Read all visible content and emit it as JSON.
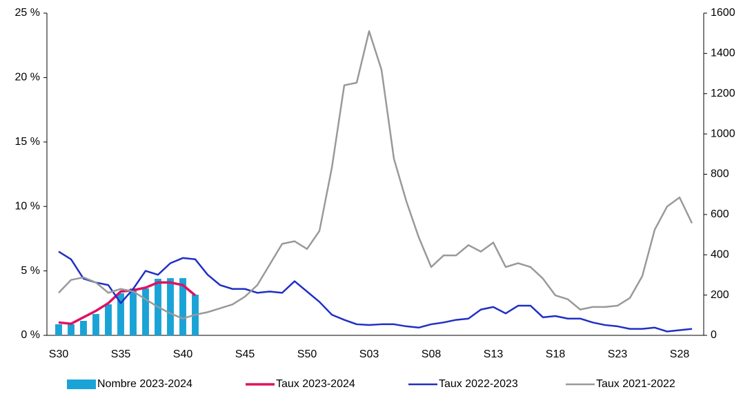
{
  "chart_data": {
    "type": "line",
    "categories": [
      "S30",
      null,
      null,
      null,
      null,
      "S35",
      null,
      null,
      null,
      null,
      "S40",
      null,
      null,
      null,
      null,
      "S45",
      null,
      null,
      null,
      null,
      "S50",
      null,
      null,
      null,
      null,
      "S03",
      null,
      null,
      null,
      null,
      "S08",
      null,
      null,
      null,
      null,
      "S13",
      null,
      null,
      null,
      null,
      "S18",
      null,
      null,
      null,
      null,
      "S23",
      null,
      null,
      null,
      null,
      "S28",
      null
    ],
    "ylim": [
      0,
      25
    ],
    "yticks": [
      {
        "value": 0,
        "label": "0 %"
      },
      {
        "value": 5,
        "label": "5 %"
      },
      {
        "value": 10,
        "label": "10 %"
      },
      {
        "value": 15,
        "label": "15 %"
      },
      {
        "value": 20,
        "label": "20 %"
      },
      {
        "value": 25,
        "label": "25 %"
      }
    ],
    "y2lim": [
      0,
      1600
    ],
    "y2ticks": [
      0,
      200,
      400,
      600,
      800,
      1000,
      1200,
      1400,
      1600
    ],
    "legend": "bottom",
    "series": [
      {
        "name": "Nombre 2023-2024",
        "type": "bar",
        "axis": "y2",
        "color": "#1aa3d6",
        "values": [
          55,
          55,
          72,
          106,
          154,
          209,
          233,
          233,
          281,
          284,
          284,
          202,
          null,
          null,
          null,
          null,
          null,
          null,
          null,
          null,
          null,
          null,
          null,
          null,
          null,
          null,
          null,
          null,
          null,
          null,
          null,
          null,
          null,
          null,
          null,
          null,
          null,
          null,
          null,
          null,
          null,
          null,
          null,
          null,
          null,
          null,
          null,
          null,
          null,
          null,
          null,
          null
        ]
      },
      {
        "name": "Taux 2023-2024",
        "type": "line",
        "color": "#e0115f",
        "width": 3.5,
        "values": [
          1.0,
          0.9,
          1.4,
          1.9,
          2.5,
          3.4,
          3.5,
          3.7,
          4.1,
          4.1,
          3.9,
          3.1,
          null,
          null,
          null,
          null,
          null,
          null,
          null,
          null,
          null,
          null,
          null,
          null,
          null,
          null,
          null,
          null,
          null,
          null,
          null,
          null,
          null,
          null,
          null,
          null,
          null,
          null,
          null,
          null,
          null,
          null,
          null,
          null,
          null,
          null,
          null,
          null,
          null,
          null,
          null,
          null
        ]
      },
      {
        "name": "Taux 2022-2023",
        "type": "line",
        "color": "#1f2fc4",
        "width": 2.5,
        "values": [
          6.5,
          5.9,
          4.4,
          4.1,
          3.9,
          2.5,
          3.6,
          5.0,
          4.7,
          5.6,
          6.0,
          5.9,
          4.7,
          3.9,
          3.6,
          3.6,
          3.3,
          3.4,
          3.3,
          4.2,
          3.4,
          2.6,
          1.6,
          1.2,
          0.86,
          0.8,
          0.86,
          0.86,
          0.7,
          0.6,
          0.86,
          1.0,
          1.2,
          1.3,
          2.0,
          2.2,
          1.7,
          2.3,
          2.3,
          1.4,
          1.5,
          1.3,
          1.3,
          1.0,
          0.8,
          0.7,
          0.5,
          0.5,
          0.6,
          0.3,
          0.4,
          0.5
        ]
      },
      {
        "name": "Taux 2021-2022",
        "type": "line",
        "color": "#999999",
        "width": 2.5,
        "values": [
          3.3,
          4.3,
          4.5,
          4.1,
          3.3,
          3.6,
          3.4,
          2.8,
          2.2,
          1.7,
          1.3,
          1.6,
          1.8,
          2.1,
          2.4,
          3.0,
          3.9,
          5.5,
          7.1,
          7.3,
          6.7,
          8.1,
          13.0,
          19.4,
          19.6,
          23.6,
          20.6,
          13.7,
          10.4,
          7.6,
          5.3,
          6.2,
          6.2,
          7.0,
          6.5,
          7.2,
          5.3,
          5.6,
          5.3,
          4.4,
          3.1,
          2.8,
          2.0,
          2.2,
          2.2,
          2.3,
          2.9,
          4.6,
          8.2,
          10.0,
          10.7,
          8.7
        ]
      }
    ]
  }
}
